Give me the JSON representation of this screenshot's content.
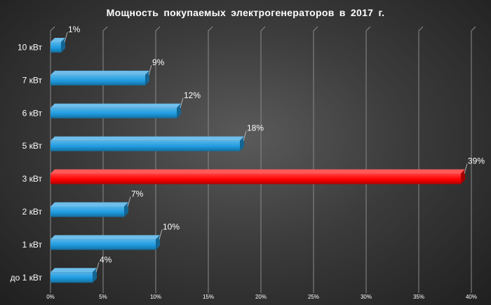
{
  "chart_data": {
    "type": "bar",
    "orientation": "horizontal",
    "title": "Мощность  покупаемых  электрогенераторов  в 2017 г.",
    "categories": [
      "до 1 кВт",
      "1 кВт",
      "2 кВт",
      "3 кВт",
      "5 кВт",
      "6 кВт",
      "7 кВт",
      "10 кВт"
    ],
    "values": [
      4,
      10,
      7,
      39,
      18,
      12,
      9,
      1
    ],
    "data_labels": [
      "4%",
      "10%",
      "7%",
      "39%",
      "18%",
      "12%",
      "9%",
      "1%"
    ],
    "xlim": [
      0,
      40
    ],
    "x_ticks": [
      "0%",
      "5%",
      "10%",
      "15%",
      "20%",
      "25%",
      "30%",
      "35%",
      "40%"
    ],
    "grid": true,
    "legend": "none",
    "colors": {
      "bar_default": "#1e9be0",
      "bar_highlight": "#ff0000",
      "highlight_category": "3 кВт",
      "grid": "#8a8a8a",
      "text": "#ffffff"
    }
  }
}
